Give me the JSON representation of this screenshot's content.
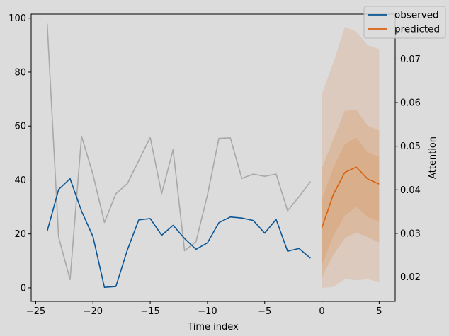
{
  "chart_data": {
    "type": "line",
    "xlabel": "Time index",
    "ylabel": "",
    "y2label": "Attention",
    "xlim": [
      -25.4,
      6.4
    ],
    "ylim": [
      -5,
      101.5
    ],
    "y2lim": [
      0.0144,
      0.0803
    ],
    "xticks": [
      -25,
      -20,
      -15,
      -10,
      -5,
      0,
      5
    ],
    "yticks": [
      0,
      20,
      40,
      60,
      80,
      100
    ],
    "y2ticks": [
      0.02,
      0.03,
      0.04,
      0.05,
      0.06,
      0.07
    ],
    "legend": {
      "placement": "top-right",
      "entries": [
        "observed",
        "predicted"
      ]
    },
    "colors": {
      "observed": "#0b5796",
      "predicted": "#d9620f",
      "attention": "#a8a8a8",
      "band": "#d9620f",
      "background": "#dcdcdc"
    },
    "series": [
      {
        "name": "observed",
        "axis": "left",
        "x": [
          -24,
          -23,
          -22,
          -21,
          -20,
          -19,
          -18,
          -17,
          -16,
          -15,
          -14,
          -13,
          -12,
          -11,
          -10,
          -9,
          -8,
          -7,
          -6,
          -5,
          -4,
          -3,
          -2,
          -1
        ],
        "y": [
          21,
          36.5,
          40.5,
          28.5,
          19,
          0.2,
          0.5,
          14,
          25.2,
          25.7,
          19.5,
          23.2,
          18.3,
          14.3,
          16.7,
          24.2,
          26.3,
          25.9,
          25,
          20.3,
          25.4,
          13.6,
          14.6,
          11
        ]
      },
      {
        "name": "predicted",
        "axis": "left",
        "x": [
          0,
          1,
          2,
          3,
          4,
          5
        ],
        "y": [
          22.3,
          34.7,
          42.8,
          44.8,
          40.4,
          38.5
        ]
      },
      {
        "name": "",
        "axis": "right",
        "x": [
          -24,
          -23,
          -22,
          -21,
          -20,
          -19,
          -18,
          -17,
          -16,
          -15,
          -14,
          -13,
          -12,
          -11,
          -10,
          -9,
          -8,
          -7,
          -6,
          -5,
          -4,
          -3,
          -2,
          -1
        ],
        "y": [
          0.0781,
          0.0291,
          0.0194,
          0.0523,
          0.0435,
          0.0325,
          0.0391,
          0.0414,
          0.0467,
          0.052,
          0.0391,
          0.0492,
          0.026,
          0.0281,
          0.0388,
          0.0518,
          0.0519,
          0.0426,
          0.0436,
          0.0431,
          0.0436,
          0.0352,
          0.0384,
          0.0419
        ]
      }
    ],
    "bands": [
      {
        "x": [
          0,
          1,
          2,
          3,
          4,
          5
        ],
        "lower": [
          0,
          0.3,
          3.3,
          2.8,
          3.2,
          2.2
        ],
        "upper": [
          72,
          83.5,
          96.8,
          95,
          90,
          88.5
        ]
      },
      {
        "x": [
          0,
          1,
          2,
          3,
          4,
          5
        ],
        "lower": [
          3.8,
          12.3,
          18.4,
          20.5,
          18.8,
          16.8
        ],
        "upper": [
          44.3,
          55.2,
          65.6,
          66.1,
          60.1,
          58.3
        ]
      },
      {
        "x": [
          0,
          1,
          2,
          3,
          4,
          5
        ],
        "lower": [
          8.5,
          19.3,
          26.8,
          30.1,
          26.2,
          24.5
        ],
        "upper": [
          32.6,
          44.6,
          53.3,
          55.8,
          50.2,
          48.6
        ]
      }
    ]
  }
}
